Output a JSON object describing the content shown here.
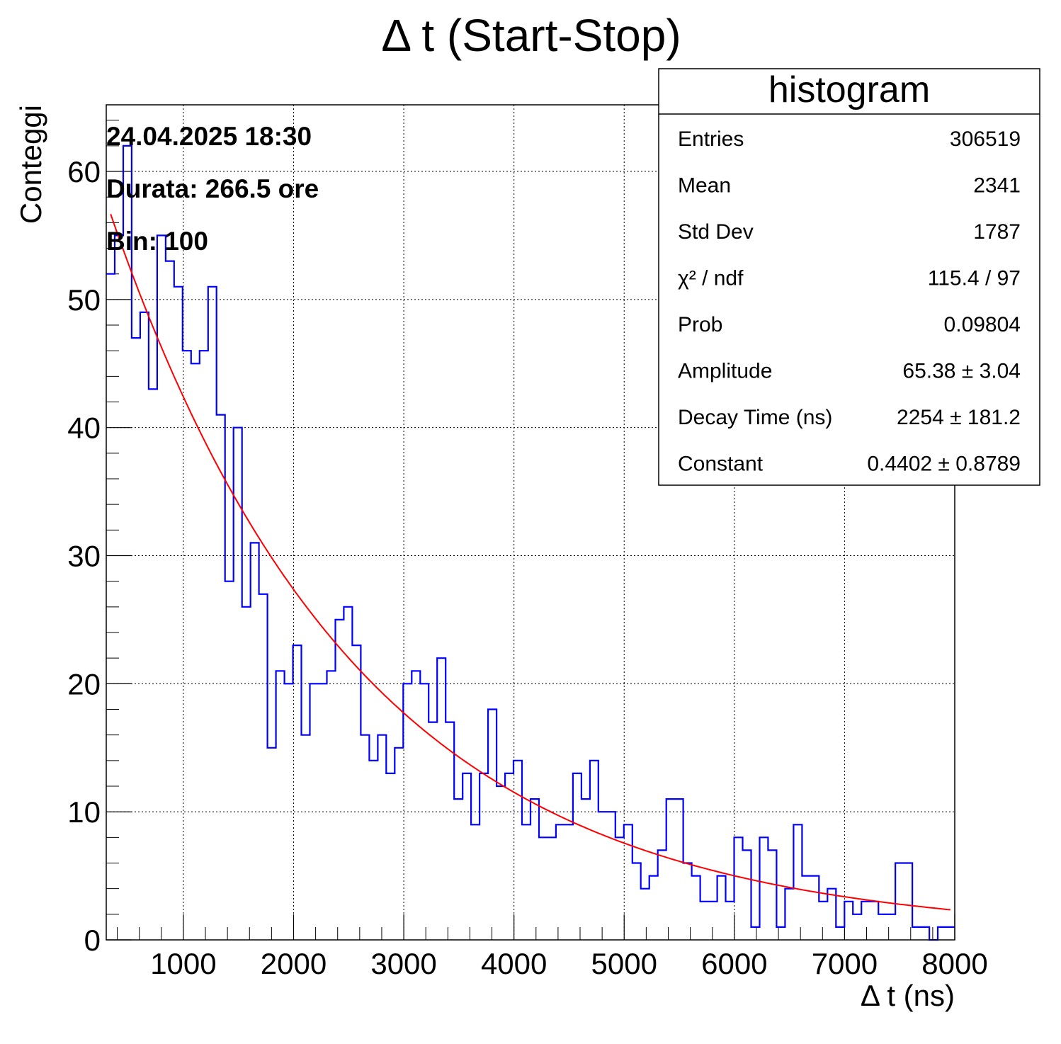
{
  "chart_data": {
    "type": "histogram",
    "title": "Δ t (Start-Stop)",
    "xlabel": "Δ t (ns)",
    "ylabel": "Conteggi",
    "xlim": [
      300,
      8000
    ],
    "ylim": [
      0,
      65.2
    ],
    "grid": true,
    "x_ticks": [
      1000,
      2000,
      3000,
      4000,
      5000,
      6000,
      7000,
      8000
    ],
    "y_ticks": [
      0,
      10,
      20,
      30,
      40,
      50,
      60
    ],
    "x_tick_labels": [
      "1000",
      "2000",
      "3000",
      "4000",
      "5000",
      "6000",
      "7000",
      "8000"
    ],
    "y_tick_labels": [
      "0",
      "10",
      "20",
      "30",
      "40",
      "50",
      "60"
    ],
    "histogram": {
      "color": "#0000ff",
      "bin_edges_range": [
        300,
        8000
      ],
      "bin_count": 100,
      "counts": [
        52,
        55,
        62,
        47,
        49,
        43,
        55,
        53,
        51,
        46,
        45,
        46,
        51,
        41,
        28,
        40,
        26,
        31,
        27,
        15,
        21,
        20,
        23,
        16,
        20,
        20,
        21,
        25,
        26,
        23,
        16,
        14,
        16,
        13,
        15,
        20,
        21,
        20,
        17,
        22,
        17,
        11,
        13,
        9,
        13,
        18,
        12,
        13,
        14,
        9,
        11,
        8,
        8,
        9,
        9,
        13,
        11,
        14,
        10,
        10,
        8,
        9,
        6,
        4,
        5,
        7,
        11,
        11,
        6,
        5,
        3,
        3,
        5,
        3,
        8,
        7,
        1,
        8,
        7,
        1,
        4,
        9,
        5,
        5,
        3,
        4,
        1,
        3,
        2,
        3,
        3,
        2,
        2,
        6,
        6,
        1,
        1,
        0,
        1,
        1
      ]
    },
    "fit": {
      "color": "#ff0000",
      "function": "Amplitude*exp(-x/DecayTime)+Constant",
      "amplitude": 65.38,
      "decay_time": 2254,
      "constant": 0.4402,
      "x_range": [
        340,
        7960
      ]
    },
    "annotations": [
      "24.04.2025 18:30",
      "Durata: 266.5 ore",
      "Bin: 100"
    ],
    "stats_box": {
      "title": "histogram",
      "rows": [
        {
          "label": "Entries",
          "value": "306519"
        },
        {
          "label": "Mean",
          "value": "2341"
        },
        {
          "label": "Std Dev",
          "value": "1787"
        },
        {
          "label": "χ² / ndf",
          "value": "115.4 / 97"
        },
        {
          "label": "Prob",
          "value": "0.09804"
        },
        {
          "label": "Amplitude",
          "value": "65.38 ± 3.04"
        },
        {
          "label": "Decay Time (ns)",
          "value": "2254 ± 181.2"
        },
        {
          "label": "Constant",
          "value": "0.4402 ± 0.8789"
        }
      ]
    }
  }
}
